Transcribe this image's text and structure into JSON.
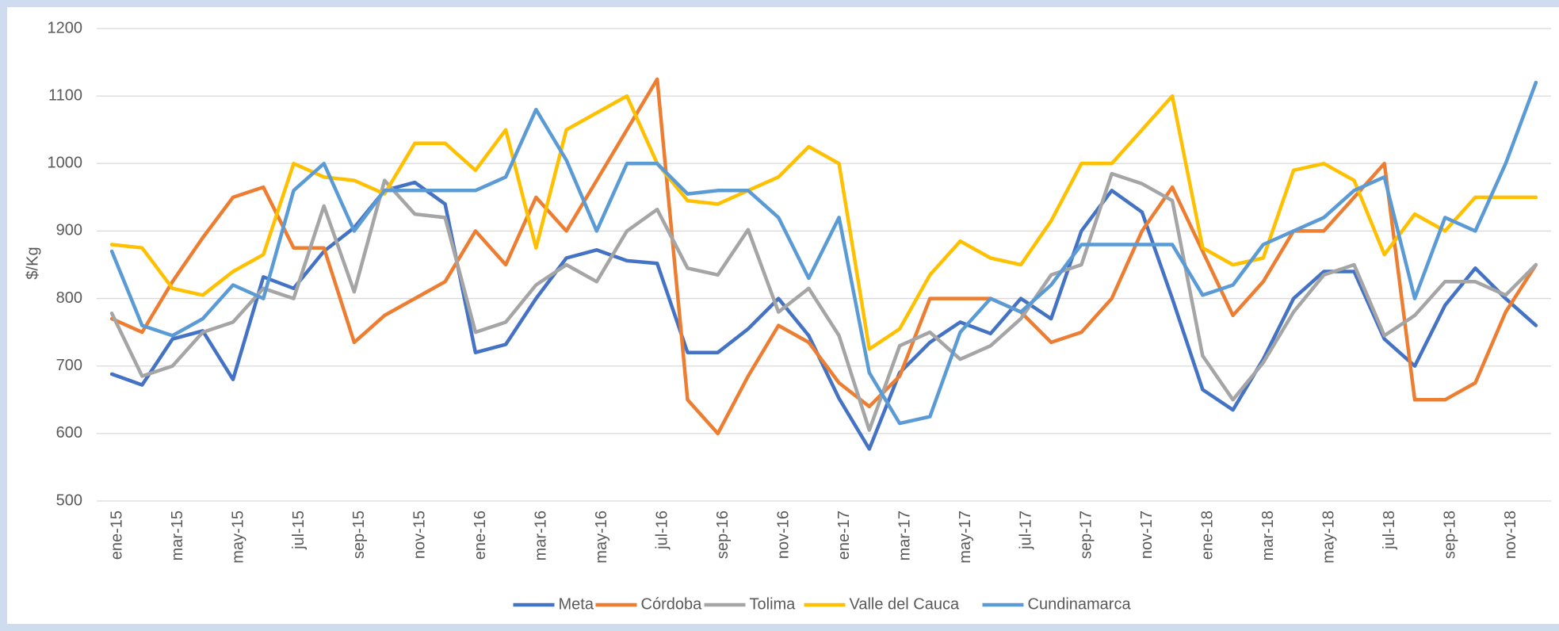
{
  "chart_data": {
    "type": "line",
    "y_label": "$/Kg",
    "categories": [
      "ene-15",
      null,
      "mar-15",
      null,
      "may-15",
      null,
      "jul-15",
      null,
      "sep-15",
      null,
      "nov-15",
      null,
      "ene-16",
      null,
      "mar-16",
      null,
      "may-16",
      null,
      "jul-16",
      null,
      "sep-16",
      null,
      "nov-16",
      null,
      "ene-17",
      null,
      "mar-17",
      null,
      "may-17",
      null,
      "jul-17",
      null,
      "sep-17",
      null,
      "nov-17",
      null,
      "ene-18",
      null,
      "mar-18",
      null,
      "may-18",
      null,
      "jul-18",
      null,
      "sep-18",
      null,
      "nov-18",
      null
    ],
    "series": [
      {
        "name": "Meta",
        "color": "#4472c4",
        "values": [
          688,
          672,
          740,
          752,
          680,
          832,
          815,
          870,
          905,
          960,
          972,
          940,
          720,
          732,
          800,
          860,
          872,
          856,
          852,
          720,
          720,
          755,
          800,
          745,
          652,
          577,
          690,
          735,
          765,
          748,
          800,
          770,
          900,
          960,
          928,
          800,
          665,
          635,
          710,
          800,
          840,
          840,
          740,
          700,
          790,
          845,
          800,
          760
        ]
      },
      {
        "name": "Córdoba",
        "color": "#ed7d31",
        "values": [
          770,
          750,
          825,
          890,
          950,
          965,
          875,
          875,
          735,
          775,
          800,
          825,
          900,
          850,
          950,
          900,
          975,
          1050,
          1125,
          650,
          600,
          685,
          760,
          735,
          675,
          640,
          685,
          800,
          800,
          800,
          780,
          735,
          750,
          800,
          900,
          965,
          870,
          775,
          825,
          900,
          900,
          950,
          1000,
          650,
          650,
          675,
          780,
          850
        ]
      },
      {
        "name": "Tolima",
        "color": "#a5a5a5",
        "values": [
          778,
          685,
          700,
          750,
          765,
          815,
          800,
          937,
          810,
          975,
          925,
          920,
          750,
          765,
          820,
          850,
          825,
          900,
          932,
          845,
          835,
          902,
          780,
          815,
          745,
          605,
          730,
          750,
          710,
          730,
          770,
          835,
          850,
          985,
          970,
          945,
          715,
          650,
          705,
          780,
          835,
          850,
          745,
          775,
          825,
          825,
          805,
          850
        ]
      },
      {
        "name": "Valle del Cauca",
        "color": "#ffc000",
        "values": [
          880,
          875,
          815,
          805,
          840,
          865,
          1000,
          980,
          975,
          955,
          1030,
          1030,
          990,
          1050,
          875,
          1050,
          1075,
          1100,
          1000,
          945,
          940,
          960,
          980,
          1025,
          1000,
          725,
          755,
          835,
          885,
          860,
          850,
          915,
          1000,
          1000,
          1050,
          1100,
          875,
          850,
          860,
          990,
          1000,
          975,
          865,
          925,
          900,
          950,
          950,
          950
        ]
      },
      {
        "name": "Cundinamarca",
        "color": "#5b9bd5",
        "values": [
          870,
          760,
          745,
          770,
          820,
          800,
          960,
          1000,
          900,
          960,
          960,
          960,
          960,
          980,
          1080,
          1005,
          900,
          1000,
          1000,
          955,
          960,
          960,
          920,
          830,
          920,
          690,
          615,
          625,
          750,
          800,
          780,
          820,
          880,
          880,
          880,
          880,
          805,
          820,
          880,
          900,
          920,
          960,
          980,
          800,
          920,
          900,
          1000,
          1120
        ]
      }
    ],
    "ylim": [
      500,
      1200
    ],
    "yticks": [
      500,
      600,
      700,
      800,
      900,
      1000,
      1100,
      1200
    ],
    "grid": true,
    "legend": "bottom"
  }
}
